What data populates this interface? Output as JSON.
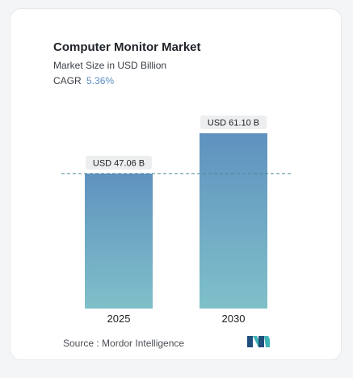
{
  "title": "Computer Monitor Market",
  "subtitle": "Market Size in USD Billion",
  "cagr": {
    "label": "CAGR",
    "value": "5.36%"
  },
  "source": "Source : Mordor Intelligence",
  "colors": {
    "bar_top": "#5f92bf",
    "bar_bottom": "#7fc0c9",
    "label_bg": "#eceef0",
    "dashed_line": "#4f8a96",
    "accent": "#5b8fc4",
    "logo_dark": "#1f4f7a",
    "logo_teal": "#3fb3b8"
  },
  "chart_data": {
    "type": "bar",
    "categories": [
      "2025",
      "2030"
    ],
    "values": [
      47.06,
      61.1
    ],
    "data_labels": [
      "USD 47.06 B",
      "USD 61.10 B"
    ],
    "title": "Computer Monitor Market",
    "subtitle": "Market Size in USD Billion",
    "ylim": [
      0,
      61.1
    ],
    "grid": false,
    "reference_line": {
      "value": 47.06,
      "style": "dashed"
    }
  }
}
